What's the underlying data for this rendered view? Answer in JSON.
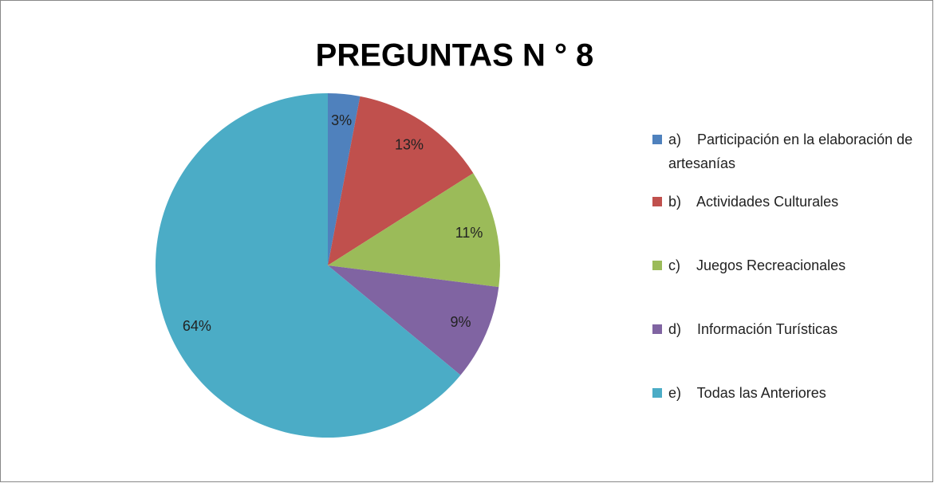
{
  "chart_data": {
    "type": "pie",
    "title": "PREGUNTAS N ° 8",
    "categories": [
      "a)    Participación en la elaboración de artesanías",
      "b)    Actividades Culturales",
      "c)    Juegos Recreacionales",
      "d)    Información Turísticas",
      "e)    Todas las Anteriores"
    ],
    "values": [
      3,
      13,
      11,
      9,
      64
    ],
    "value_labels": [
      "3%",
      "13%",
      "11%",
      "9%",
      "64%"
    ],
    "colors": [
      "#4f81bd",
      "#c0504d",
      "#9bbb59",
      "#8064a2",
      "#4bacc6"
    ],
    "legend": "right"
  }
}
